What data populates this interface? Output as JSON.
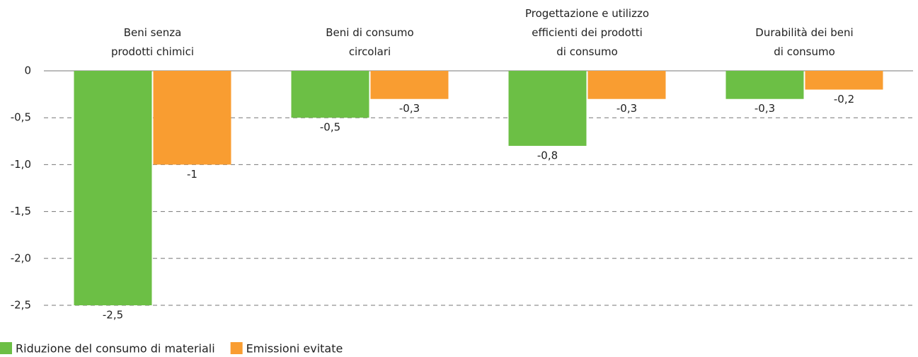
{
  "chart_data": {
    "type": "bar",
    "categories": [
      "Beni senza\nprodotti chimici",
      "Beni di consumo\ncircolari",
      "Progettazione e utilizzo\nefficienti dei prodotti\ndi consumo",
      "Durabilità dei beni\ndi consumo"
    ],
    "series": [
      {
        "name": "Riduzione del consumo di materiali",
        "color": "#6cbf45",
        "values": [
          -2.5,
          -0.5,
          -0.8,
          -0.3
        ],
        "value_labels": [
          "-2,5",
          "-0,5",
          "-0,8",
          "-0,3"
        ]
      },
      {
        "name": "Emissioni evitate",
        "color": "#f99d31",
        "values": [
          -1,
          -0.3,
          -0.3,
          -0.2
        ],
        "value_labels": [
          "-1",
          "-0,3",
          "-0,3",
          "-0,2"
        ]
      }
    ],
    "ylim": [
      -2.5,
      0
    ],
    "yticks": [
      0,
      {
        "value": -0.5,
        "label": "-0,5"
      },
      {
        "value": -1,
        "label": "-1,0"
      },
      {
        "value": -1.5,
        "label": "-1,5"
      },
      {
        "value": -2,
        "label": "-2,0"
      },
      {
        "value": -2.5,
        "label": "-2,5"
      }
    ],
    "grid": true
  }
}
